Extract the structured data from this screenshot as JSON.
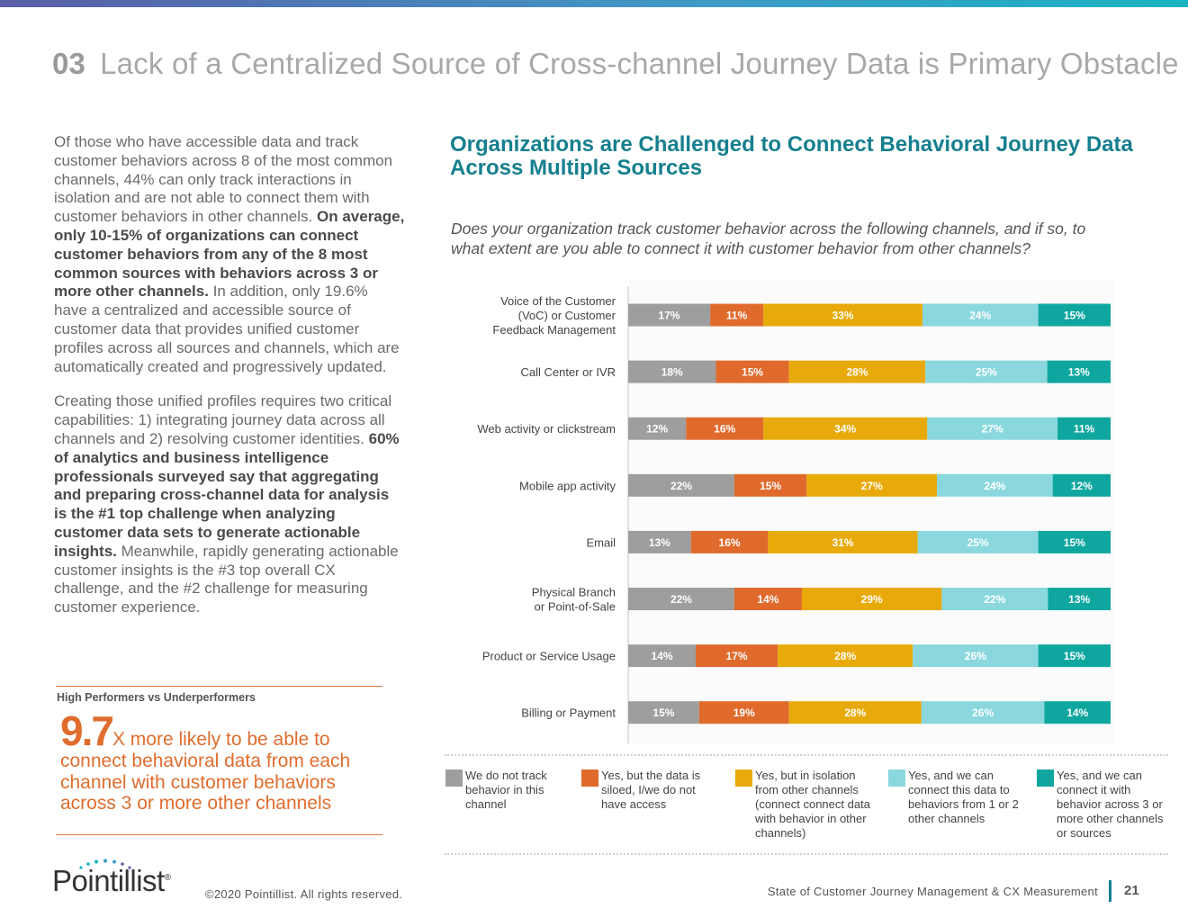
{
  "header": {
    "number": "03",
    "title": "Lack of a Centralized Source of Cross-channel Journey Data is Primary Obstacle"
  },
  "left": {
    "p1_a": "Of those who have accessible data and track customer behaviors across 8 of the most common channels, 44% can only track interactions in isolation and are not able to connect them with customer behaviors in other channels. ",
    "p1_b": "On average, only 10-15% of organizations can connect customer behaviors from any of the 8 most common sources with behaviors across 3 or more other channels.",
    "p1_c": " In addition, only 19.6% have a centralized and accessible source of customer data that provides unified customer profiles across all sources and channels, which are automatically created and progressively updated.",
    "p2_a": "Creating those unified profiles requires two critical capabilities: 1) integrating journey data across all channels and 2) resolving customer identities. ",
    "p2_b": "60% of analytics and business intelligence professionals surveyed say that aggregating and preparing cross-channel data for analysis is the #1 top challenge when analyzing customer data sets to generate actionable insights.",
    "p2_c": " Meanwhile, rapidly generating actionable customer insights is the #3 top overall CX challenge, and the #2 challenge for measuring customer experience."
  },
  "highlight": {
    "title": "High Performers vs Underperformers",
    "big": "9.7",
    "text": "X more likely to be able to connect behavioral data from each channel with customer behaviors across 3 or more other channels"
  },
  "chart_header": {
    "title_line1": "Organizations are Challenged to Connect Behavioral Journey Data",
    "title_line2": "Across Multiple Sources",
    "question_line1": "Does your organization track customer behavior across the following channels, and if so, to",
    "question_line2": "what extent are you able to connect it with customer behavior from other channels?"
  },
  "chart_data": {
    "type": "bar",
    "orientation": "horizontal",
    "stacked": true,
    "title": "Organizations are Challenged to Connect Behavioral Journey Data Across Multiple Sources",
    "categories": [
      [
        "Voice of the Customer",
        "(VoC) or Customer",
        "Feedback Management"
      ],
      [
        "Call Center or IVR"
      ],
      [
        "Web activity or clickstream"
      ],
      [
        "Mobile app activity"
      ],
      [
        "Email"
      ],
      [
        "Physical Branch",
        "or Point-of-Sale"
      ],
      [
        "Product or Service Usage"
      ],
      [
        "Billing or Payment"
      ]
    ],
    "series": [
      {
        "name": "We do not track behavior in this channel",
        "color": "#9e9e9e",
        "values": [
          17,
          18,
          12,
          22,
          13,
          22,
          14,
          15
        ]
      },
      {
        "name": "Yes, but the data is siloed, I/we do not have access",
        "color": "#e06a2c",
        "values": [
          11,
          15,
          16,
          15,
          16,
          14,
          17,
          19
        ]
      },
      {
        "name": "Yes, but in isolation from other channels (connect connect data with behavior in other channels)",
        "color": "#e8aa0a",
        "values": [
          33,
          28,
          34,
          27,
          31,
          29,
          28,
          28
        ]
      },
      {
        "name": "Yes, and we can connect this data to behaviors from 1 or 2 other channels",
        "color": "#8ad8de",
        "values": [
          24,
          25,
          27,
          24,
          25,
          22,
          26,
          26
        ]
      },
      {
        "name": "Yes, and we can connect it with behavior across 3 or more other channels or sources",
        "color": "#0fa6a0",
        "values": [
          15,
          13,
          11,
          12,
          15,
          13,
          15,
          14
        ]
      }
    ],
    "value_suffix": "%"
  },
  "legend": [
    {
      "label": "We do not track behavior in this channel",
      "color": "#9e9e9e"
    },
    {
      "label": "Yes, but the data is siloed, I/we do not have access",
      "color": "#e06a2c"
    },
    {
      "label": "Yes, but in isolation from other channels (connect connect data with behavior in other channels)",
      "color": "#e8aa0a"
    },
    {
      "label": "Yes, and we can connect this data to behaviors from 1 or 2 other channels",
      "color": "#8ad8de"
    },
    {
      "label": "Yes, and we can connect it with behavior across 3 or more other channels or sources",
      "color": "#0fa6a0"
    }
  ],
  "footer": {
    "logo": "Pointillist",
    "logo_mark": "®",
    "copyright": "©2020 Pointillist. All rights reserved.",
    "report_title": "State of Customer Journey Management & CX Measurement",
    "page": "21"
  }
}
